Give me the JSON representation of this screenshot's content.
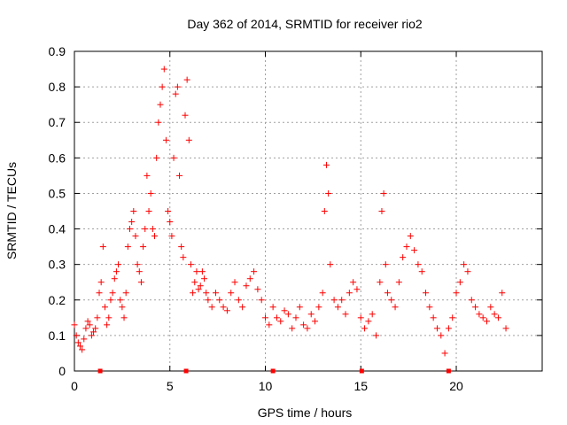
{
  "chart_data": {
    "type": "scatter",
    "title": "Day 362 of 2014, SRMTID for receiver rio2",
    "xlabel": "GPS time / hours",
    "ylabel": "SRMTID / TECUs",
    "xlim": [
      0,
      24.5
    ],
    "ylim": [
      0,
      0.9
    ],
    "xticks": [
      0,
      5,
      10,
      15,
      20
    ],
    "xtick_labels": [
      "0",
      "5",
      "10",
      "15",
      "20"
    ],
    "yticks": [
      0,
      0.1,
      0.2,
      0.3,
      0.4,
      0.5,
      0.6,
      0.7,
      0.8,
      0.9
    ],
    "ytick_labels": [
      "0",
      "0.1",
      "0.2",
      "0.3",
      "0.4",
      "0.5",
      "0.6",
      "0.7",
      "0.8",
      "0.9"
    ],
    "grid": true,
    "marker": "+",
    "series": [
      {
        "name": "SRMTID",
        "color": "#ff0000",
        "x": [
          0.0,
          0.1,
          0.2,
          0.3,
          0.4,
          0.5,
          0.6,
          0.7,
          0.8,
          0.9,
          1.0,
          1.1,
          1.2,
          1.3,
          1.4,
          1.5,
          1.6,
          1.7,
          1.8,
          1.9,
          2.0,
          2.1,
          2.2,
          2.3,
          2.4,
          2.5,
          2.6,
          2.7,
          2.8,
          2.9,
          3.0,
          3.1,
          3.2,
          3.3,
          3.4,
          3.5,
          3.6,
          3.7,
          3.8,
          3.9,
          4.0,
          4.1,
          4.2,
          4.3,
          4.4,
          4.5,
          4.6,
          4.7,
          4.8,
          4.9,
          5.0,
          5.1,
          5.2,
          5.3,
          5.4,
          5.5,
          5.6,
          5.7,
          5.8,
          5.9,
          6.0,
          6.1,
          6.2,
          6.3,
          6.4,
          6.5,
          6.6,
          6.7,
          6.8,
          6.9,
          7.0,
          7.2,
          7.4,
          7.6,
          7.8,
          8.0,
          8.2,
          8.4,
          8.6,
          8.8,
          9.0,
          9.2,
          9.4,
          9.6,
          9.8,
          10.0,
          10.2,
          10.4,
          10.6,
          10.8,
          11.0,
          11.2,
          11.4,
          11.6,
          11.8,
          12.0,
          12.2,
          12.4,
          12.6,
          12.8,
          13.0,
          13.1,
          13.2,
          13.3,
          13.4,
          13.6,
          13.8,
          14.0,
          14.2,
          14.4,
          14.6,
          14.8,
          15.0,
          15.2,
          15.4,
          15.6,
          15.8,
          16.0,
          16.1,
          16.2,
          16.3,
          16.4,
          16.6,
          16.8,
          17.0,
          17.2,
          17.4,
          17.6,
          17.8,
          18.0,
          18.2,
          18.4,
          18.6,
          18.8,
          19.0,
          19.2,
          19.4,
          19.6,
          19.8,
          20.0,
          20.2,
          20.4,
          20.6,
          20.8,
          21.0,
          21.2,
          21.4,
          21.6,
          21.8,
          22.0,
          22.2,
          22.4,
          22.6
        ],
        "y": [
          0.13,
          0.1,
          0.08,
          0.07,
          0.06,
          0.09,
          0.12,
          0.14,
          0.13,
          0.1,
          0.11,
          0.12,
          0.15,
          0.22,
          0.25,
          0.35,
          0.18,
          0.13,
          0.15,
          0.2,
          0.22,
          0.26,
          0.28,
          0.3,
          0.2,
          0.18,
          0.15,
          0.22,
          0.35,
          0.4,
          0.42,
          0.45,
          0.38,
          0.3,
          0.28,
          0.25,
          0.35,
          0.4,
          0.55,
          0.45,
          0.5,
          0.4,
          0.38,
          0.6,
          0.7,
          0.75,
          0.8,
          0.85,
          0.65,
          0.45,
          0.42,
          0.38,
          0.6,
          0.78,
          0.8,
          0.55,
          0.35,
          0.32,
          0.72,
          0.82,
          0.65,
          0.3,
          0.22,
          0.25,
          0.28,
          0.23,
          0.24,
          0.28,
          0.26,
          0.22,
          0.2,
          0.18,
          0.22,
          0.2,
          0.18,
          0.17,
          0.22,
          0.25,
          0.2,
          0.18,
          0.24,
          0.26,
          0.28,
          0.23,
          0.2,
          0.15,
          0.13,
          0.18,
          0.15,
          0.14,
          0.17,
          0.16,
          0.12,
          0.15,
          0.18,
          0.13,
          0.12,
          0.16,
          0.14,
          0.18,
          0.22,
          0.45,
          0.58,
          0.5,
          0.3,
          0.2,
          0.18,
          0.2,
          0.16,
          0.22,
          0.25,
          0.23,
          0.15,
          0.12,
          0.14,
          0.16,
          0.1,
          0.25,
          0.45,
          0.5,
          0.3,
          0.22,
          0.2,
          0.18,
          0.25,
          0.32,
          0.35,
          0.38,
          0.34,
          0.3,
          0.28,
          0.22,
          0.18,
          0.15,
          0.12,
          0.1,
          0.05,
          0.12,
          0.15,
          0.22,
          0.25,
          0.3,
          0.28,
          0.2,
          0.18,
          0.16,
          0.15,
          0.14,
          0.18,
          0.16,
          0.15,
          0.22,
          0.12
        ]
      }
    ],
    "gap_markers_x": [
      1.35,
      5.85,
      10.4,
      15.05,
      19.6
    ]
  }
}
